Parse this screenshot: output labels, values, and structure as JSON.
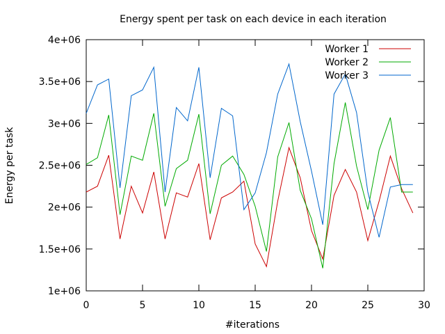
{
  "chart_data": {
    "type": "line",
    "title": "Energy spent per task on each device in each iteration",
    "xlabel": "#iterations",
    "ylabel": "Energy per task",
    "xlim": [
      0,
      30
    ],
    "ylim": [
      1000000,
      4000000
    ],
    "xticks": [
      0,
      5,
      10,
      15,
      20,
      25,
      30
    ],
    "xtick_labels": [
      "0",
      "5",
      "10",
      "15",
      "20",
      "25",
      "30"
    ],
    "yticks": [
      1000000,
      1500000,
      2000000,
      2500000,
      3000000,
      3500000,
      4000000
    ],
    "ytick_labels": [
      "1e+06",
      "1.5e+06",
      "2e+06",
      "2.5e+06",
      "3e+06",
      "3.5e+06",
      "4e+06"
    ],
    "grid": false,
    "legend_position": "top-right",
    "series": [
      {
        "name": "Worker 1",
        "color": "#cc0000",
        "x": [
          0,
          1,
          2,
          3,
          4,
          5,
          6,
          7,
          8,
          9,
          10,
          11,
          12,
          13,
          14,
          15,
          16,
          17,
          18,
          19,
          20,
          21,
          22,
          23,
          24,
          25,
          26,
          27,
          28,
          29
        ],
        "values": [
          2180000,
          2250000,
          2620000,
          1620000,
          2250000,
          1930000,
          2420000,
          1620000,
          2170000,
          2120000,
          2520000,
          1610000,
          2110000,
          2180000,
          2310000,
          1560000,
          1290000,
          2070000,
          2710000,
          2350000,
          1720000,
          1380000,
          2140000,
          2450000,
          2180000,
          1600000,
          2070000,
          2610000,
          2220000,
          1930000
        ]
      },
      {
        "name": "Worker 2",
        "color": "#00aa00",
        "x": [
          0,
          1,
          2,
          3,
          4,
          5,
          6,
          7,
          8,
          9,
          10,
          11,
          12,
          13,
          14,
          15,
          16,
          17,
          18,
          19,
          20,
          21,
          22,
          23,
          24,
          25,
          26,
          27,
          28,
          29
        ],
        "values": [
          2510000,
          2590000,
          3100000,
          1910000,
          2610000,
          2560000,
          3120000,
          2010000,
          2460000,
          2560000,
          3110000,
          1920000,
          2500000,
          2610000,
          2390000,
          2010000,
          1470000,
          2600000,
          3010000,
          2200000,
          1860000,
          1270000,
          2520000,
          3250000,
          2490000,
          1970000,
          2680000,
          3070000,
          2180000,
          2180000
        ]
      },
      {
        "name": "Worker 3",
        "color": "#0066cc",
        "x": [
          0,
          1,
          2,
          3,
          4,
          5,
          6,
          7,
          8,
          9,
          10,
          11,
          12,
          13,
          14,
          15,
          16,
          17,
          18,
          19,
          20,
          21,
          22,
          23,
          24,
          25,
          26,
          27,
          28,
          29
        ],
        "values": [
          3120000,
          3460000,
          3530000,
          2230000,
          3330000,
          3400000,
          3670000,
          2180000,
          3190000,
          3030000,
          3670000,
          2350000,
          3180000,
          3090000,
          1970000,
          2170000,
          2650000,
          3350000,
          3710000,
          3020000,
          2430000,
          1790000,
          3350000,
          3590000,
          3130000,
          2180000,
          1640000,
          2240000,
          2270000,
          2270000
        ]
      }
    ]
  }
}
